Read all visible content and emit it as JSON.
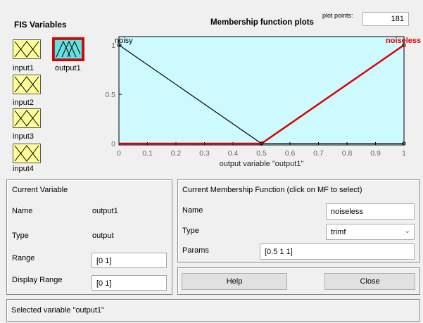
{
  "fis_variables": {
    "title": "FIS Variables",
    "items": [
      {
        "label": "input1",
        "kind": "input"
      },
      {
        "label": "output1",
        "kind": "output",
        "selected": true
      },
      {
        "label": "input2",
        "kind": "input"
      },
      {
        "label": "input3",
        "kind": "input"
      },
      {
        "label": "input4",
        "kind": "input"
      }
    ]
  },
  "plot": {
    "title": "Membership function plots",
    "plot_points_label": "plot points:",
    "plot_points_value": "181",
    "xlabel": "output variable \"output1\"",
    "mf_labels": {
      "left": "noisy",
      "right": "noiseless"
    }
  },
  "chart_data": {
    "type": "line",
    "xlabel": "output variable \"output1\"",
    "xlim": [
      0,
      1
    ],
    "ylim": [
      0,
      1
    ],
    "xticks": [
      "0",
      "0.1",
      "0.2",
      "0.3",
      "0.4",
      "0.5",
      "0.6",
      "0.7",
      "0.8",
      "0.9",
      "1"
    ],
    "yticks": [
      "0",
      "0.5",
      "1"
    ],
    "series": [
      {
        "name": "noisy",
        "color": "#000000",
        "x": [
          0,
          0.5,
          1
        ],
        "y": [
          1,
          0,
          0
        ]
      },
      {
        "name": "noiseless",
        "color": "#e00000",
        "x": [
          0,
          0.5,
          1
        ],
        "y": [
          0,
          0,
          1
        ]
      }
    ],
    "background": "#ccfaff"
  },
  "current_variable": {
    "title": "Current Variable",
    "name_label": "Name",
    "name_value": "output1",
    "type_label": "Type",
    "type_value": "output",
    "range_label": "Range",
    "range_value": "[0 1]",
    "display_range_label": "Display Range",
    "display_range_value": "[0 1]"
  },
  "current_mf": {
    "title": "Current Membership Function (click on MF to select)",
    "name_label": "Name",
    "name_value": "noiseless",
    "type_label": "Type",
    "type_value": "trimf",
    "params_label": "Params",
    "params_value": "[0.5 1 1]"
  },
  "buttons": {
    "help": "Help",
    "close": "Close"
  },
  "status": "Selected variable \"output1\""
}
